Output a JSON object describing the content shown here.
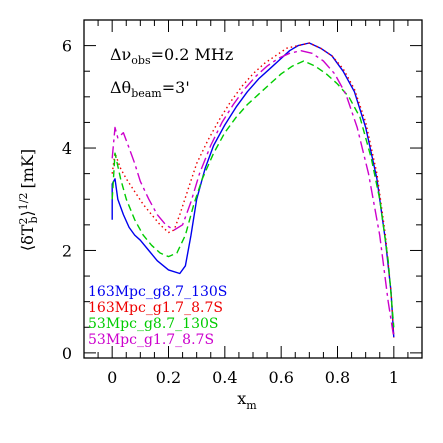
{
  "chart_data": {
    "type": "line",
    "xlim": [
      -0.1,
      1.1
    ],
    "ylim": [
      -0.1,
      6.5
    ],
    "xticks": [
      "0",
      "0.2",
      "0.4",
      "0.6",
      "0.8",
      "1"
    ],
    "yticks": [
      "0",
      "2",
      "4",
      "6"
    ],
    "xlabel": {
      "base": "x",
      "sub": "m"
    },
    "ylabel": {
      "pre": "⟨δT",
      "sub": "b",
      "sup": "2",
      "post": "⟩",
      "exp": "1/2",
      "unit": "[mK]"
    },
    "annotation": {
      "line1": {
        "base": "Δν",
        "sub": "obs",
        "rest": "=0.2 MHz"
      },
      "line2": {
        "base": "Δθ",
        "sub": "beam",
        "rest": "=3'"
      }
    },
    "grid": false,
    "legend_position": "bottom-left",
    "series": [
      {
        "name": "163Mpc_g8.7_130S",
        "color": "#0000ee",
        "style": "solid",
        "x": [
          0.0,
          0.0,
          0.01,
          0.02,
          0.04,
          0.06,
          0.08,
          0.1,
          0.13,
          0.16,
          0.2,
          0.24,
          0.26,
          0.28,
          0.3,
          0.33,
          0.36,
          0.4,
          0.44,
          0.48,
          0.52,
          0.56,
          0.6,
          0.63,
          0.66,
          0.7,
          0.74,
          0.78,
          0.82,
          0.86,
          0.9,
          0.94,
          0.97,
          0.99,
          1.0
        ],
        "y": [
          2.6,
          3.3,
          3.4,
          3.0,
          2.7,
          2.45,
          2.3,
          2.2,
          2.0,
          1.8,
          1.62,
          1.55,
          1.7,
          2.3,
          3.0,
          3.6,
          4.05,
          4.45,
          4.8,
          5.1,
          5.35,
          5.55,
          5.75,
          5.9,
          6.0,
          6.05,
          5.95,
          5.8,
          5.5,
          5.1,
          4.4,
          3.4,
          2.2,
          1.2,
          0.3
        ]
      },
      {
        "name": "163Mpc_g1.7_8.7S",
        "color": "#ee0000",
        "style": "dotted",
        "x": [
          0.0,
          0.01,
          0.03,
          0.05,
          0.08,
          0.11,
          0.14,
          0.17,
          0.2,
          0.22,
          0.24,
          0.27,
          0.3,
          0.34,
          0.38,
          0.42,
          0.46,
          0.5,
          0.54,
          0.58,
          0.62,
          0.66,
          0.7,
          0.74,
          0.78,
          0.82,
          0.86,
          0.9,
          0.94,
          0.97,
          0.99,
          1.0
        ],
        "y": [
          3.5,
          3.9,
          3.6,
          3.4,
          3.15,
          2.9,
          2.7,
          2.5,
          2.35,
          2.4,
          2.7,
          3.2,
          3.7,
          4.15,
          4.55,
          4.9,
          5.2,
          5.45,
          5.65,
          5.8,
          5.95,
          6.0,
          6.05,
          5.95,
          5.8,
          5.55,
          5.15,
          4.5,
          3.5,
          2.3,
          1.2,
          0.3
        ]
      },
      {
        "name": "53Mpc_g8.7_130S",
        "color": "#00cc00",
        "style": "dashed",
        "x": [
          0.0,
          0.01,
          0.03,
          0.05,
          0.08,
          0.11,
          0.14,
          0.17,
          0.2,
          0.23,
          0.26,
          0.29,
          0.32,
          0.36,
          0.4,
          0.44,
          0.48,
          0.52,
          0.56,
          0.6,
          0.64,
          0.68,
          0.72,
          0.76,
          0.8,
          0.84,
          0.88,
          0.92,
          0.95,
          0.98,
          1.0
        ],
        "y": [
          3.0,
          3.9,
          3.4,
          3.0,
          2.6,
          2.3,
          2.1,
          1.95,
          1.88,
          1.95,
          2.3,
          2.9,
          3.4,
          3.9,
          4.3,
          4.6,
          4.85,
          5.05,
          5.25,
          5.45,
          5.6,
          5.7,
          5.6,
          5.45,
          5.25,
          5.0,
          4.6,
          3.8,
          3.0,
          1.8,
          0.5
        ]
      },
      {
        "name": "53Mpc_g1.7_8.7S",
        "color": "#cc00cc",
        "style": "dashdot",
        "x": [
          0.0,
          0.01,
          0.02,
          0.04,
          0.06,
          0.08,
          0.1,
          0.13,
          0.16,
          0.19,
          0.22,
          0.25,
          0.28,
          0.31,
          0.35,
          0.39,
          0.43,
          0.47,
          0.51,
          0.55,
          0.59,
          0.63,
          0.67,
          0.71,
          0.75,
          0.79,
          0.83,
          0.87,
          0.91,
          0.95,
          0.98,
          1.0
        ],
        "y": [
          3.8,
          4.4,
          4.2,
          4.3,
          4.0,
          3.7,
          3.35,
          3.0,
          2.7,
          2.5,
          2.4,
          2.5,
          2.95,
          3.5,
          4.05,
          4.5,
          4.85,
          5.15,
          5.4,
          5.6,
          5.75,
          5.85,
          5.9,
          5.85,
          5.7,
          5.45,
          5.05,
          4.4,
          3.5,
          2.3,
          1.0,
          0.3
        ]
      }
    ]
  }
}
